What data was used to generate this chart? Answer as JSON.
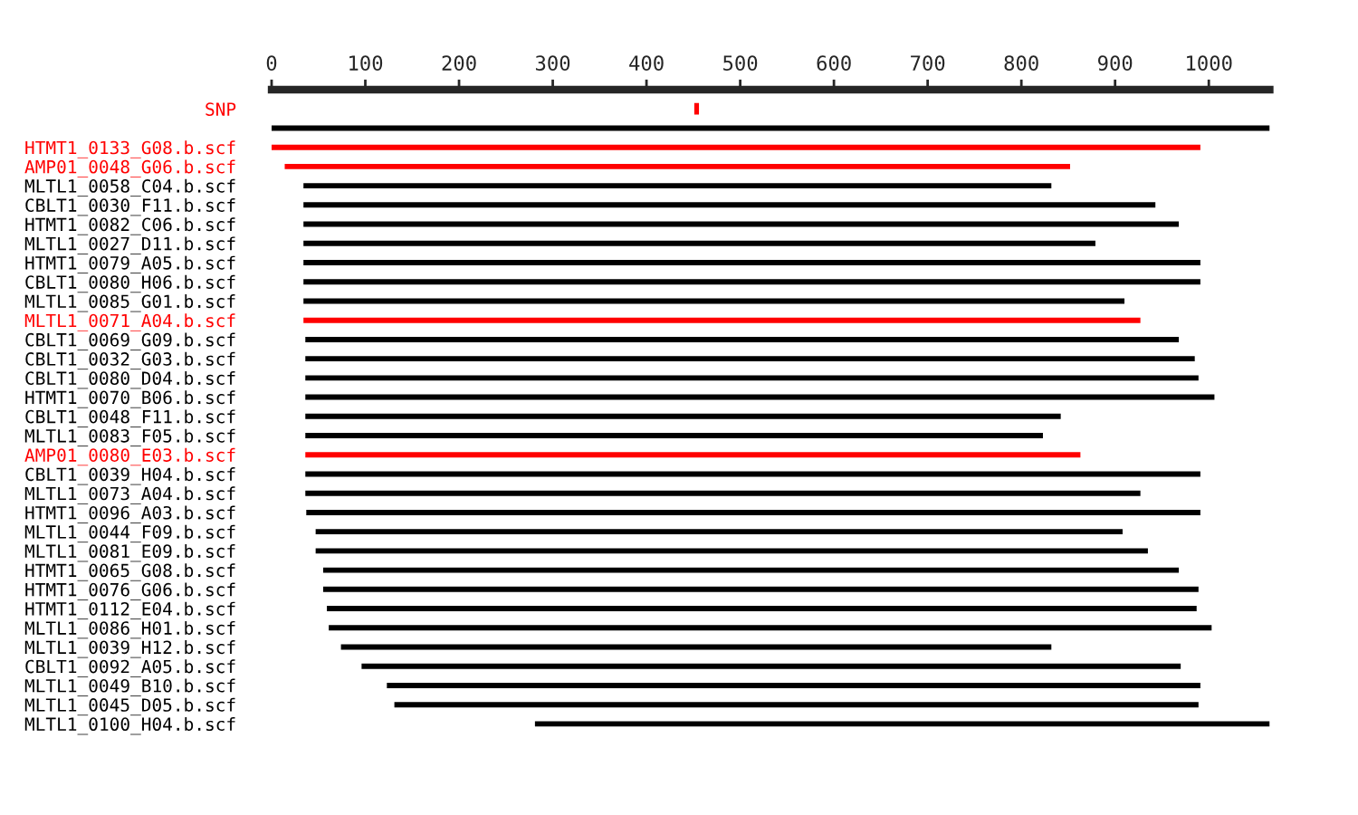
{
  "chart_data": {
    "type": "bar",
    "orientation": "horizontal",
    "categories": [
      "SNP",
      null,
      "HTMT1_0133_G08.b.scf",
      "AMP01_0048_G06.b.scf",
      "MLTL1_0058_C04.b.scf",
      "CBLT1_0030_F11.b.scf",
      "HTMT1_0082_C06.b.scf",
      "MLTL1_0027_D11.b.scf",
      "HTMT1_0079_A05.b.scf",
      "CBLT1_0080_H06.b.scf",
      "MLTL1_0085_G01.b.scf",
      "MLTL1_0071_A04.b.scf",
      "CBLT1_0069_G09.b.scf",
      "CBLT1_0032_G03.b.scf",
      "CBLT1_0080_D04.b.scf",
      "HTMT1_0070_B06.b.scf",
      "CBLT1_0048_F11.b.scf",
      "MLTL1_0083_F05.b.scf",
      "AMP01_0080_E03.b.scf",
      "CBLT1_0039_H04.b.scf",
      "MLTL1_0073_A04.b.scf",
      "HTMT1_0096_A03.b.scf",
      "MLTL1_0044_F09.b.scf",
      "MLTL1_0081_E09.b.scf",
      "HTMT1_0065_G08.b.scf",
      "HTMT1_0076_G06.b.scf",
      "HTMT1_0112_E04.b.scf",
      "MLTL1_0086_H01.b.scf",
      "MLTL1_0039_H12.b.scf",
      "CBLT1_0092_A05.b.scf",
      "MLTL1_0049_B10.b.scf",
      "MLTL1_0045_D05.b.scf",
      "MLTL1_0100_H04.b.scf"
    ],
    "base": [
      451,
      0,
      0,
      14,
      34,
      34,
      34,
      34,
      34,
      34,
      34,
      34,
      36,
      36,
      36,
      36,
      36,
      36,
      36,
      36,
      36,
      37,
      47,
      47,
      55,
      55,
      59,
      61,
      74,
      96,
      123,
      131,
      281
    ],
    "values": [
      5,
      1065,
      991,
      838,
      798,
      909,
      934,
      845,
      957,
      957,
      876,
      893,
      932,
      949,
      953,
      970,
      806,
      787,
      827,
      955,
      891,
      954,
      861,
      888,
      913,
      934,
      928,
      942,
      758,
      874,
      868,
      858,
      784
    ],
    "colors": [
      "#ff0000",
      "#000000",
      "#ff0000",
      "#ff0000",
      "#000000",
      "#000000",
      "#000000",
      "#000000",
      "#000000",
      "#000000",
      "#000000",
      "#ff0000",
      "#000000",
      "#000000",
      "#000000",
      "#000000",
      "#000000",
      "#000000",
      "#ff0000",
      "#000000",
      "#000000",
      "#000000",
      "#000000",
      "#000000",
      "#000000",
      "#000000",
      "#000000",
      "#000000",
      "#000000",
      "#000000",
      "#000000",
      "#000000",
      "#000000"
    ],
    "xlim": [
      0,
      1065
    ],
    "xticks": [
      0,
      100,
      200,
      300,
      400,
      500,
      600,
      700,
      800,
      900,
      1000
    ],
    "grid": false,
    "legend": false
  }
}
